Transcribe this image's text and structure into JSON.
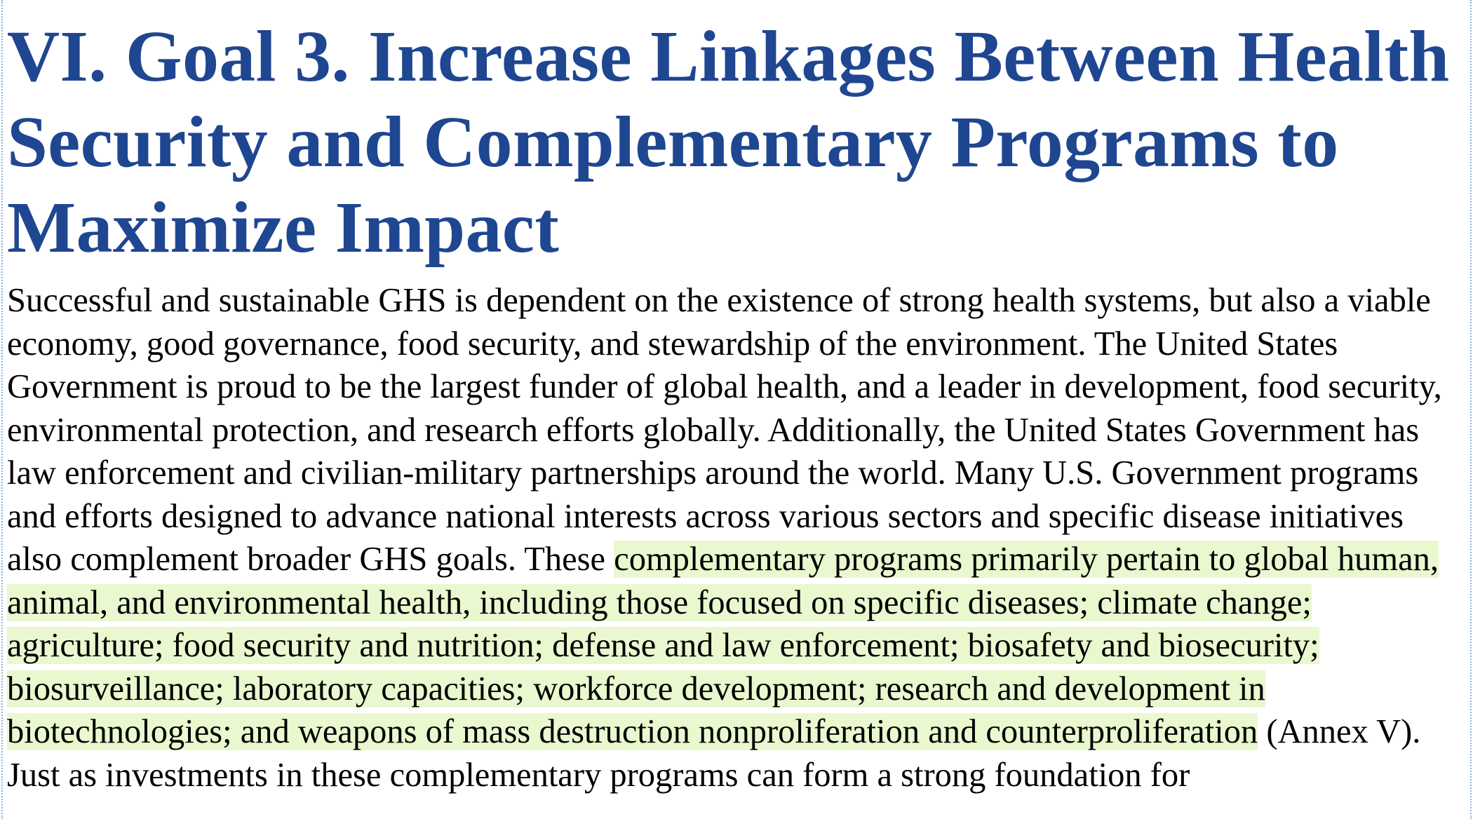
{
  "document": {
    "heading": "VI. Goal 3. Increase Linkages Between Health Security and Complementary Programs to Maximize Impact",
    "paragraph_plain": "Successful and sustainable GHS is dependent on the existence of strong health systems, but also a viable economy, good governance, food security, and stewardship of the environment. The United States Government is proud to be the largest funder of global health, and a leader in development, food security, environmental protection, and research efforts globally. Additionally, the United States Government has law enforcement and civilian-military partnerships around the world. Many U.S. Government programs and efforts designed to advance national interests across various sectors and specific disease initiatives also complement broader GHS goals. These ",
    "paragraph_highlighted": "complementary programs primarily pertain to global human, animal, and environmental health, including those focused on specific diseases; climate change; agriculture; food security and nutrition; defense and law enforcement; biosafety and biosecurity; biosurveillance; laboratory capacities; workforce development; research and development in biotechnologies; and weapons of mass destruction nonproliferation and counterproliferation",
    "paragraph_tail": " (Annex V). Just as investments in these complementary programs can form a strong foundation for"
  },
  "colors": {
    "heading": "#1f4690",
    "highlight": "#e9f8cf",
    "text": "#000000",
    "margin_guide": "#8fb3d9"
  }
}
